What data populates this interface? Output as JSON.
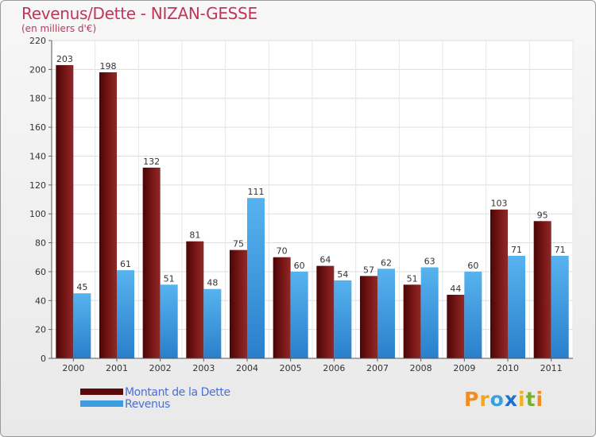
{
  "chart_data": {
    "type": "bar",
    "title": "Revenus/Dette - NIZAN-GESSE",
    "subtitle": "(en milliers d'€)",
    "categories": [
      "2000",
      "2001",
      "2002",
      "2003",
      "2004",
      "2005",
      "2006",
      "2007",
      "2008",
      "2009",
      "2010",
      "2011"
    ],
    "series": [
      {
        "name": "Montant de la Dette",
        "color": "#7a1414",
        "values": [
          203,
          198,
          132,
          81,
          75,
          70,
          64,
          57,
          51,
          44,
          103,
          95
        ]
      },
      {
        "name": "Revenus",
        "color": "#3d9be0",
        "values": [
          45,
          61,
          51,
          48,
          111,
          60,
          54,
          62,
          63,
          60,
          71,
          71
        ]
      }
    ],
    "ylim": [
      0,
      220
    ],
    "yticks": [
      0,
      20,
      40,
      60,
      80,
      100,
      120,
      140,
      160,
      180,
      200,
      220
    ],
    "grid": true,
    "legend_position": "bottom-left"
  },
  "logo": {
    "letters": [
      "P",
      "r",
      "o",
      "x",
      "i",
      "t",
      "i"
    ],
    "colors": [
      "#f28c1e",
      "#f2a81e",
      "#3aa0dc",
      "#1e6fd0",
      "#f2b01e",
      "#7ab030",
      "#f28c1e"
    ]
  }
}
